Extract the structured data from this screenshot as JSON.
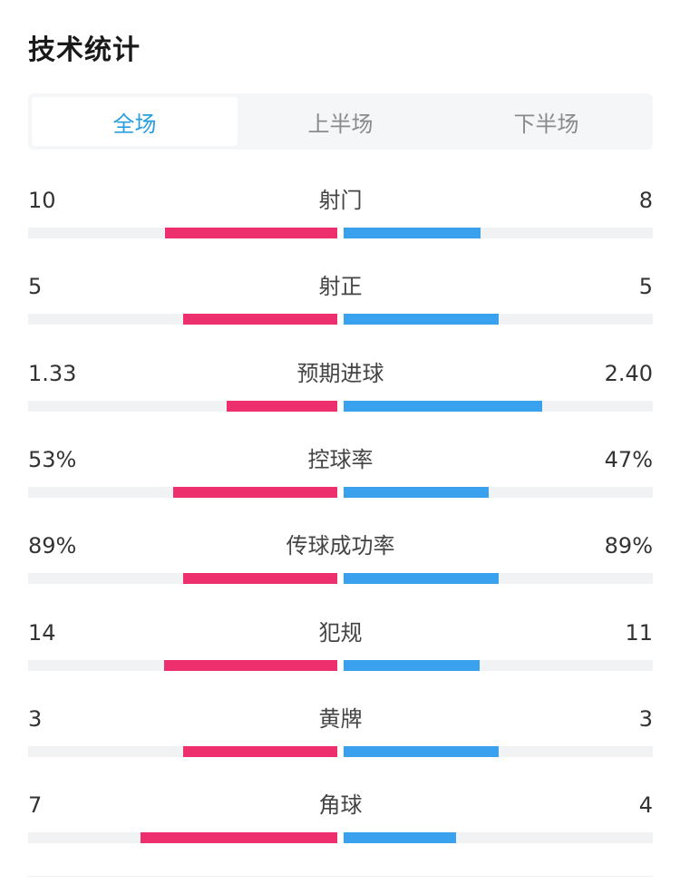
{
  "title": "技术统计",
  "tabs": [
    {
      "label": "全场",
      "active": true
    },
    {
      "label": "上半场",
      "active": false
    },
    {
      "label": "下半场",
      "active": false
    }
  ],
  "colors": {
    "home": "#ee2f6e",
    "away": "#3aa1ef",
    "active_tab": "#2a9fe0"
  },
  "stats": [
    {
      "label": "射门",
      "home": "10",
      "away": "8",
      "home_fill": 0.556,
      "away_fill": 0.444
    },
    {
      "label": "射正",
      "home": "5",
      "away": "5",
      "home_fill": 0.5,
      "away_fill": 0.5
    },
    {
      "label": "预期进球",
      "home": "1.33",
      "away": "2.40",
      "home_fill": 0.357,
      "away_fill": 0.643
    },
    {
      "label": "控球率",
      "home": "53%",
      "away": "47%",
      "home_fill": 0.53,
      "away_fill": 0.47
    },
    {
      "label": "传球成功率",
      "home": "89%",
      "away": "89%",
      "home_fill": 0.5,
      "away_fill": 0.5
    },
    {
      "label": "犯规",
      "home": "14",
      "away": "11",
      "home_fill": 0.56,
      "away_fill": 0.44
    },
    {
      "label": "黄牌",
      "home": "3",
      "away": "3",
      "home_fill": 0.5,
      "away_fill": 0.5
    },
    {
      "label": "角球",
      "home": "7",
      "away": "4",
      "home_fill": 0.636,
      "away_fill": 0.364
    }
  ]
}
